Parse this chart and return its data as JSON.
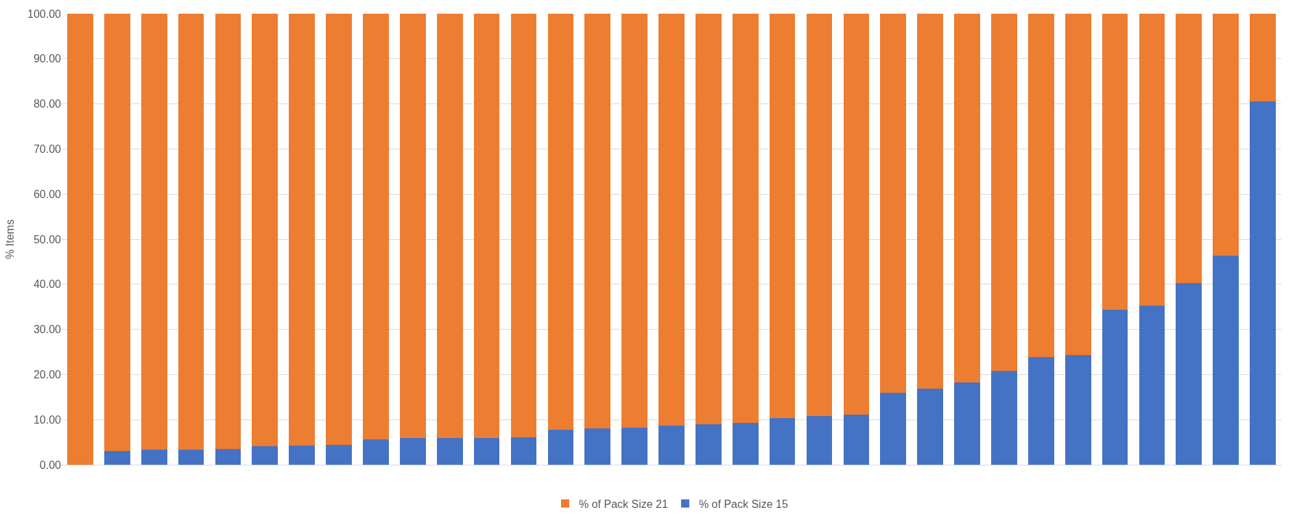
{
  "chart_data": {
    "type": "bar",
    "stacked": true,
    "ylabel": "% Items",
    "categories": [
      null,
      null,
      null,
      null,
      null,
      null,
      null,
      null,
      null,
      null,
      null,
      null,
      null,
      null,
      null,
      null,
      null,
      null,
      null,
      null,
      null,
      null,
      null,
      null,
      null,
      null,
      null,
      null,
      null,
      null,
      null,
      null,
      null
    ],
    "series": [
      {
        "name": "% of Pack Size 15",
        "color": "#4472c4",
        "values": [
          0,
          3.0,
          3.4,
          3.4,
          3.5,
          4.1,
          4.3,
          4.4,
          5.6,
          6.0,
          6.0,
          6.0,
          6.1,
          7.8,
          8.0,
          8.2,
          8.7,
          9.0,
          9.2,
          10.3,
          10.8,
          11.1,
          15.9,
          16.8,
          18.3,
          20.8,
          23.9,
          24.3,
          34.3,
          35.2,
          40.2,
          46.3,
          80.5
        ]
      },
      {
        "name": "% of Pack Size 21",
        "color": "#ed7d31",
        "values": [
          100,
          97.0,
          96.6,
          96.6,
          96.5,
          95.9,
          95.7,
          95.6,
          94.4,
          94.0,
          94.0,
          94.0,
          93.9,
          92.2,
          92.0,
          91.8,
          91.3,
          91.0,
          90.8,
          89.7,
          89.2,
          88.9,
          84.1,
          83.2,
          81.7,
          79.2,
          76.1,
          75.7,
          65.7,
          64.8,
          59.8,
          53.7,
          19.5
        ]
      }
    ],
    "ylim": [
      0,
      100
    ],
    "yticks": [
      {
        "value": 0,
        "label": "0.00"
      },
      {
        "value": 10,
        "label": "10.00"
      },
      {
        "value": 20,
        "label": "20.00"
      },
      {
        "value": 30,
        "label": "30.00"
      },
      {
        "value": 40,
        "label": "40.00"
      },
      {
        "value": 50,
        "label": "50.00"
      },
      {
        "value": 60,
        "label": "60.00"
      },
      {
        "value": 70,
        "label": "70.00"
      },
      {
        "value": 80,
        "label": "80.00"
      },
      {
        "value": 90,
        "label": "90.00"
      },
      {
        "value": 100,
        "label": "100.00"
      }
    ],
    "grid": "y",
    "legend": "bottom"
  }
}
